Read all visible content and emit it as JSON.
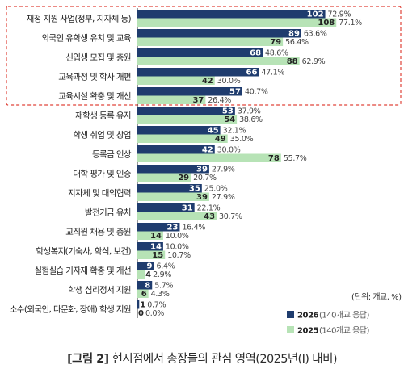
{
  "chart_data": {
    "type": "bar",
    "orientation": "horizontal",
    "categories": [
      "재정 지원 사업(정부, 지자체 등)",
      "외국인 유학생 유치 및 교육",
      "신입생 모집 및 충원",
      "교육과정 및 학사 개편",
      "교육시설 확충 및 개선",
      "재학생 등록 유지",
      "학생 취업 및 창업",
      "등록금 인상",
      "대학 평가 및 인증",
      "지자체 및 대외협력",
      "발전기금 유치",
      "교직원 채용 및 충원",
      "학생복지(기숙사, 학식, 보건)",
      "실험실습 기자재 확충 및 개선",
      "학생 심리정서 지원",
      "소수(외국인, 다문화, 장애) 학생 지원"
    ],
    "series": [
      {
        "name": "2026",
        "legend_note": "(140개교 응답)",
        "color": "#1f3c6e",
        "values": [
          102,
          89,
          68,
          66,
          57,
          53,
          45,
          42,
          39,
          35,
          31,
          23,
          14,
          9,
          8,
          1
        ],
        "percents": [
          "72.9%",
          "63.6%",
          "48.6%",
          "47.1%",
          "40.7%",
          "37.9%",
          "32.1%",
          "30.0%",
          "27.9%",
          "25.0%",
          "22.1%",
          "16.4%",
          "10.0%",
          "6.4%",
          "5.7%",
          "0.7%"
        ]
      },
      {
        "name": "2025",
        "legend_note": "(140개교 응답)",
        "color": "#b7e3b6",
        "values": [
          108,
          79,
          88,
          42,
          37,
          54,
          49,
          78,
          29,
          39,
          43,
          14,
          15,
          4,
          6,
          0
        ],
        "percents": [
          "77.1%",
          "56.4%",
          "62.9%",
          "30.0%",
          "26.4%",
          "38.6%",
          "35.0%",
          "55.7%",
          "20.7%",
          "27.9%",
          "30.7%",
          "10.0%",
          "10.7%",
          "2.9%",
          "4.3%",
          "0.0%"
        ]
      }
    ],
    "unit_note": "(단위: 개교, %)",
    "highlight_box": "top 5 categories",
    "highlight_color": "#e0443a",
    "xlim": [
      0,
      110
    ],
    "grid": false,
    "legend_position": "bottom-right"
  },
  "caption": {
    "figure_label": "[그림 2]",
    "text": "현시점에서 총장들의 관심 영역(2025년(Ⅰ) 대비)"
  }
}
